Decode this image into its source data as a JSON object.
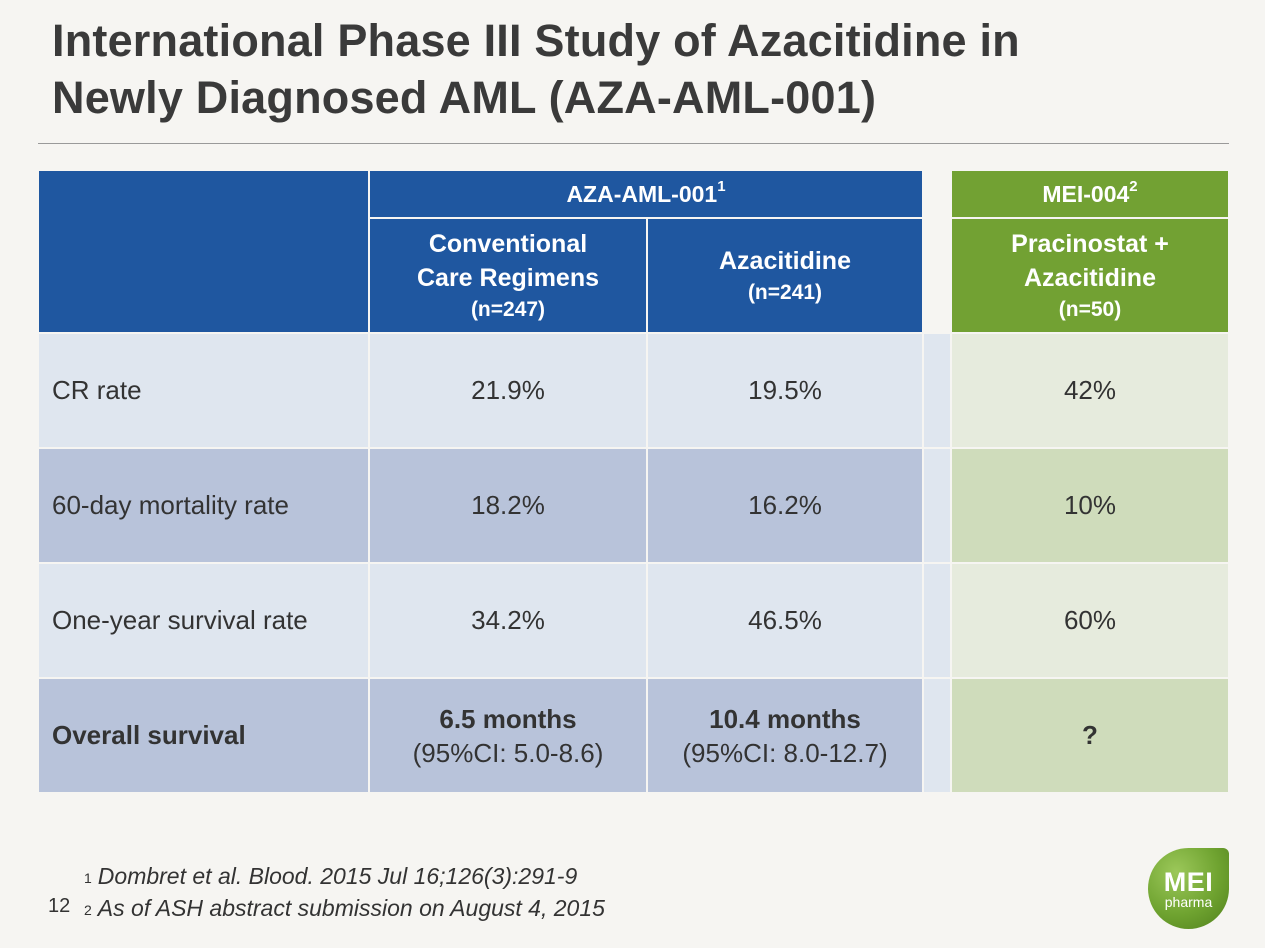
{
  "title": {
    "line1": "International Phase III Study of Azacitidine in",
    "line2": "Newly Diagnosed AML (AZA-AML-001)"
  },
  "table": {
    "groups": [
      {
        "label": "AZA-AML-001",
        "sup": "1"
      },
      {
        "label": "MEI-004",
        "sup": "2"
      }
    ],
    "columns": [
      {
        "line1": "Conventional",
        "line2": "Care Regimens",
        "n": "(n=247)"
      },
      {
        "line1": "Azacitidine",
        "line2": "",
        "n": "(n=241)"
      },
      {
        "line1": "Pracinostat +",
        "line2": "Azacitidine",
        "n": "(n=50)"
      }
    ],
    "rows": [
      {
        "label": "CR rate",
        "values": [
          "21.9%",
          "19.5%",
          "42%"
        ]
      },
      {
        "label": "60-day mortality rate",
        "values": [
          "18.2%",
          "16.2%",
          "10%"
        ]
      },
      {
        "label": "One-year survival rate",
        "values": [
          "34.2%",
          "46.5%",
          "60%"
        ]
      }
    ],
    "overall_survival": {
      "label": "Overall survival",
      "col1": {
        "months": "6.5 months",
        "ci": "(95%CI: 5.0-8.6)"
      },
      "col2": {
        "months": "10.4 months",
        "ci": "(95%CI: 8.0-12.7)"
      },
      "col3": "?"
    }
  },
  "footnotes": [
    {
      "sup": "1",
      "text": "Dombret et al. Blood. 2015 Jul 16;126(3):291-9"
    },
    {
      "sup": "2",
      "text": "As of ASH abstract submission on August 4, 2015"
    }
  ],
  "page_number": "12",
  "logo": {
    "big": "MEI",
    "small": "pharma"
  },
  "colors": {
    "header_blue": "#1f57a0",
    "header_green": "#72a133",
    "row_light_blue": "#dfe6ef",
    "row_dark_blue": "#b8c3da",
    "row_light_green": "#e6ebdd",
    "row_dark_green": "#cfdcbb"
  }
}
